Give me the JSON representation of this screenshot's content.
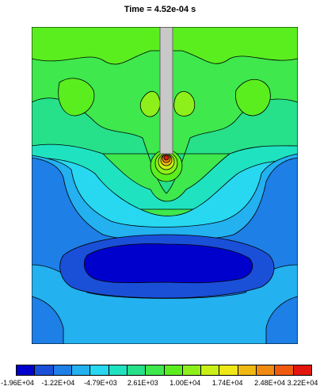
{
  "title": "Time = 4.52e-04 s",
  "colors": {
    "band_1": "#0000cd",
    "band_2": "#1a4fd8",
    "band_3": "#1e7fe6",
    "band_4": "#23b1f0",
    "band_5": "#27d8f0",
    "band_6": "#1fe3c0",
    "band_7": "#26e08a",
    "band_8": "#3ee84d",
    "band_9": "#5aee1f",
    "band_10": "#8ef01a",
    "band_11": "#c8f016",
    "band_12": "#f0e816",
    "band_13": "#f0b812",
    "band_14": "#f08a10",
    "band_15": "#f05a0e",
    "band_16": "#e2160c",
    "probe": "#c8c8c8"
  },
  "colorbar": {
    "labels": [
      "-1.96E+04",
      "-1.22E+04",
      "-4.79E+03",
      "2.61E+03",
      "1.00E+04",
      "1.74E+04",
      "2.48E+04",
      "3.22E+04"
    ]
  }
}
